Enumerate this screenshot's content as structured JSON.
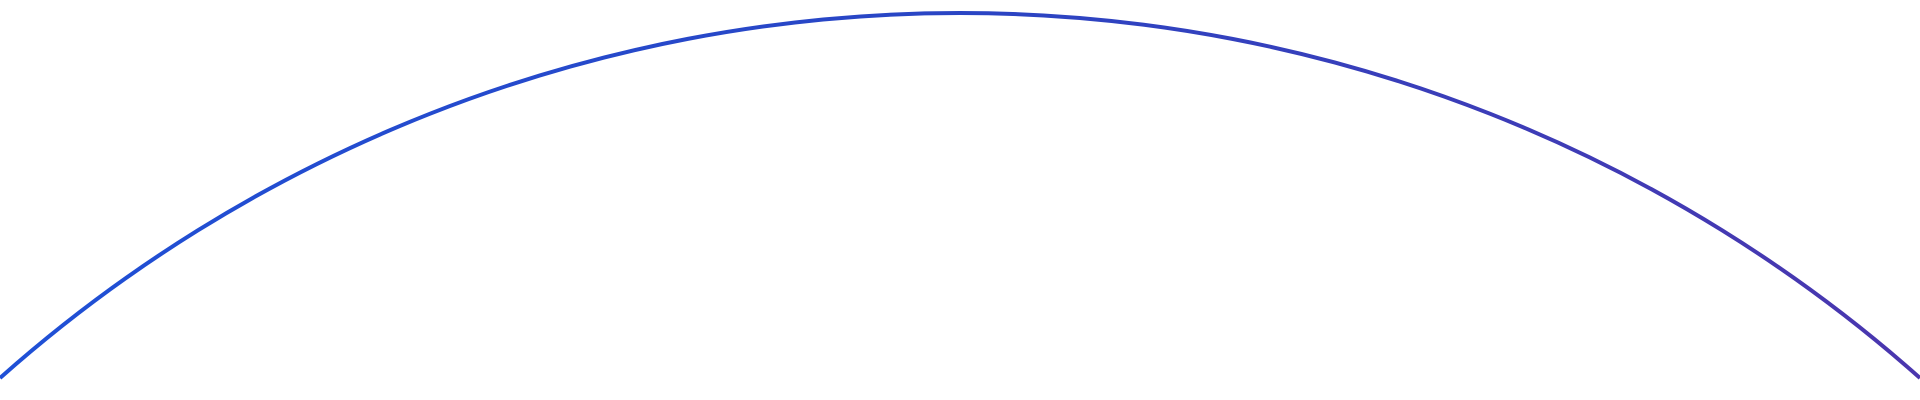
{
  "arc": {
    "gradient_start_color": "#1f50d6",
    "gradient_mid_color": "#2a45c4",
    "gradient_end_color": "#4a36ae"
  }
}
